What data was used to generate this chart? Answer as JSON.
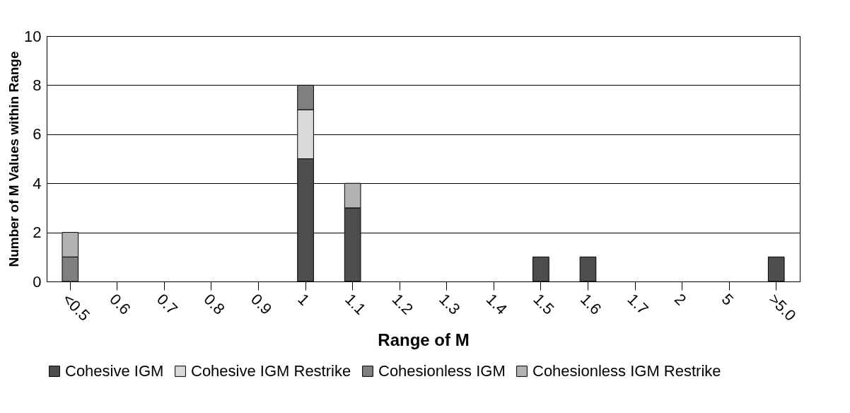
{
  "chart_data": {
    "type": "bar",
    "stacked": true,
    "xlabel": "Range of M",
    "ylabel": "Number of M Values within Range",
    "categories": [
      "<0.5",
      "0.6",
      "0.7",
      "0.8",
      "0.9",
      "1",
      "1.1",
      "1.2",
      "1.3",
      "1.4",
      "1.5",
      "1.6",
      "1.7",
      "2",
      "5",
      ">5.0"
    ],
    "series": [
      {
        "name": "Cohesive IGM",
        "color": "#4d4d4d",
        "values": [
          null,
          null,
          null,
          null,
          null,
          5,
          3,
          null,
          null,
          null,
          1,
          1,
          null,
          null,
          null,
          1
        ]
      },
      {
        "name": "Cohesive IGM Restrike",
        "color": "#d9d9d9",
        "values": [
          null,
          null,
          null,
          null,
          null,
          2,
          null,
          null,
          null,
          null,
          null,
          null,
          null,
          null,
          null,
          null
        ]
      },
      {
        "name": "Cohesionless IGM",
        "color": "#7f7f7f",
        "values": [
          1,
          null,
          null,
          null,
          null,
          1,
          null,
          null,
          null,
          null,
          null,
          null,
          null,
          null,
          null,
          null
        ]
      },
      {
        "name": "Cohesionless IGM Restrike",
        "color": "#b3b3b3",
        "values": [
          1,
          null,
          null,
          null,
          null,
          null,
          1,
          null,
          null,
          null,
          null,
          null,
          null,
          null,
          null,
          null
        ]
      }
    ],
    "ylim": [
      0,
      10
    ],
    "yticks": [
      0,
      2,
      4,
      6,
      8,
      10
    ],
    "grid": "y",
    "legend": "bottom"
  }
}
